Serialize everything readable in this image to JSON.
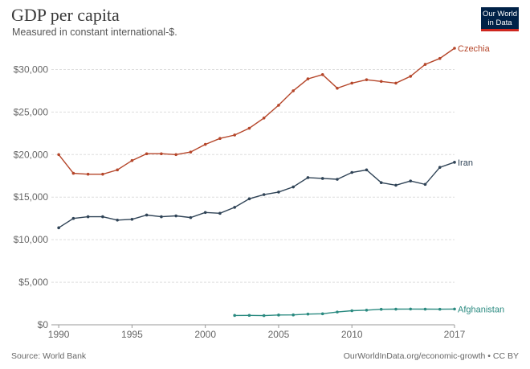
{
  "header": {
    "title": "GDP per capita",
    "subtitle": "Measured in constant international-$.",
    "logo_line1": "Our World",
    "logo_line2": "in Data"
  },
  "footer": {
    "source": "Source: World Bank",
    "credit": "OurWorldInData.org/economic-growth • CC BY"
  },
  "chart_data": {
    "type": "line",
    "title": "GDP per capita",
    "subtitle": "Measured in constant international-$.",
    "xlabel": "",
    "ylabel": "",
    "xlim": [
      1989.5,
      2017
    ],
    "ylim": [
      0,
      32500
    ],
    "x_ticks": [
      1990,
      1995,
      2000,
      2005,
      2010,
      2017
    ],
    "y_ticks": [
      0,
      5000,
      10000,
      15000,
      20000,
      25000,
      30000
    ],
    "y_tick_labels": [
      "$0",
      "$5,000",
      "$10,000",
      "$15,000",
      "$20,000",
      "$25,000",
      "$30,000"
    ],
    "grid": "horizontal",
    "legend": "inline-right",
    "series": [
      {
        "name": "Czechia",
        "color": "#b5462a",
        "x": [
          1990,
          1991,
          1992,
          1993,
          1994,
          1995,
          1996,
          1997,
          1998,
          1999,
          2000,
          2001,
          2002,
          2003,
          2004,
          2005,
          2006,
          2007,
          2008,
          2009,
          2010,
          2011,
          2012,
          2013,
          2014,
          2015,
          2016,
          2017
        ],
        "y": [
          20000,
          17800,
          17700,
          17700,
          18200,
          19300,
          20100,
          20100,
          20000,
          20300,
          21200,
          21900,
          22300,
          23100,
          24300,
          25800,
          27500,
          28900,
          29400,
          27800,
          28400,
          28800,
          28600,
          28400,
          29200,
          30600,
          31300,
          32500
        ]
      },
      {
        "name": "Iran",
        "color": "#2f4356",
        "x": [
          1990,
          1991,
          1992,
          1993,
          1994,
          1995,
          1996,
          1997,
          1998,
          1999,
          2000,
          2001,
          2002,
          2003,
          2004,
          2005,
          2006,
          2007,
          2008,
          2009,
          2010,
          2011,
          2012,
          2013,
          2014,
          2015,
          2016,
          2017
        ],
        "y": [
          11400,
          12500,
          12700,
          12700,
          12300,
          12400,
          12900,
          12700,
          12800,
          12600,
          13200,
          13100,
          13800,
          14800,
          15300,
          15600,
          16200,
          17300,
          17200,
          17100,
          17900,
          18200,
          16700,
          16400,
          16900,
          16500,
          18500,
          19100
        ]
      },
      {
        "name": "Afghanistan",
        "color": "#2a8a80",
        "x": [
          2002,
          2003,
          2004,
          2005,
          2006,
          2007,
          2008,
          2009,
          2010,
          2011,
          2012,
          2013,
          2014,
          2015,
          2016,
          2017
        ],
        "y": [
          1100,
          1110,
          1080,
          1150,
          1160,
          1260,
          1290,
          1500,
          1650,
          1720,
          1820,
          1840,
          1850,
          1840,
          1830,
          1850
        ]
      }
    ]
  }
}
